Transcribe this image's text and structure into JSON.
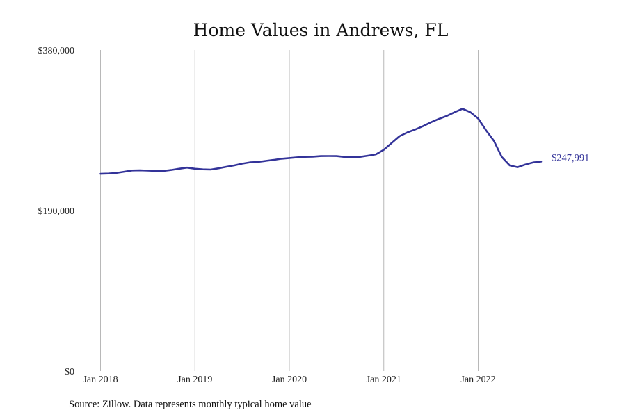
{
  "chart_data": {
    "type": "line",
    "title": "Home Values in Andrews, FL",
    "xlabel": "",
    "ylabel": "",
    "ylim": [
      0,
      380000
    ],
    "y_ticks": [
      {
        "value": 0,
        "label": "$0"
      },
      {
        "value": 190000,
        "label": "$190,000"
      },
      {
        "value": 380000,
        "label": "$380,000"
      }
    ],
    "x_ticks": [
      {
        "value": "2018-01",
        "label": "Jan 2018"
      },
      {
        "value": "2019-01",
        "label": "Jan 2019"
      },
      {
        "value": "2020-01",
        "label": "Jan 2020"
      },
      {
        "value": "2021-01",
        "label": "Jan 2021"
      },
      {
        "value": "2022-01",
        "label": "Jan 2022"
      }
    ],
    "grid": "vertical lines at x ticks",
    "series": [
      {
        "color": "#333399",
        "x": [
          "2018-01",
          "2018-02",
          "2018-03",
          "2018-04",
          "2018-05",
          "2018-06",
          "2018-07",
          "2018-08",
          "2018-09",
          "2018-10",
          "2018-11",
          "2018-12",
          "2019-01",
          "2019-02",
          "2019-03",
          "2019-04",
          "2019-05",
          "2019-06",
          "2019-07",
          "2019-08",
          "2019-09",
          "2019-10",
          "2019-11",
          "2019-12",
          "2020-01",
          "2020-02",
          "2020-03",
          "2020-04",
          "2020-05",
          "2020-06",
          "2020-07",
          "2020-08",
          "2020-09",
          "2020-10",
          "2020-11",
          "2020-12",
          "2021-01",
          "2021-02",
          "2021-03",
          "2021-04",
          "2021-05",
          "2021-06",
          "2021-07",
          "2021-08",
          "2021-09",
          "2021-10",
          "2021-11",
          "2021-12",
          "2022-01",
          "2022-02",
          "2022-03",
          "2022-04",
          "2022-05",
          "2022-06",
          "2022-07",
          "2022-08",
          "2022-09"
        ],
        "values": [
          233500,
          233800,
          234500,
          236000,
          237500,
          237600,
          237300,
          236900,
          237000,
          238000,
          239500,
          240800,
          239500,
          238800,
          238500,
          240000,
          241800,
          243500,
          245500,
          247100,
          247600,
          248800,
          250000,
          251400,
          252200,
          253000,
          253600,
          253800,
          254500,
          254600,
          254500,
          253500,
          253300,
          253600,
          255000,
          256500,
          262000,
          270000,
          278000,
          282500,
          286000,
          290000,
          294500,
          298500,
          302000,
          306500,
          310500,
          306500,
          299000,
          285000,
          272500,
          253500,
          243500,
          241300,
          244500,
          247000,
          247991
        ]
      }
    ],
    "end_label": "$247,991",
    "source": "Source: Zillow. Data represents monthly typical home value"
  }
}
